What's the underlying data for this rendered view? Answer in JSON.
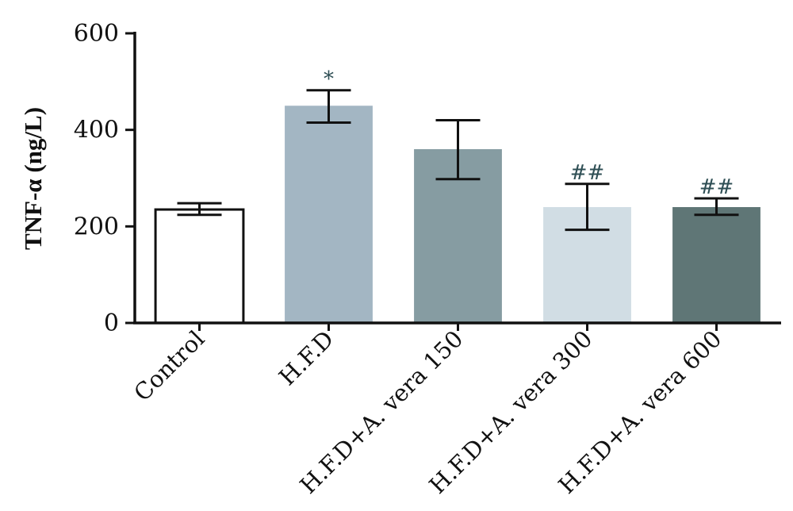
{
  "chart_data": {
    "type": "bar",
    "ylabel": "TNF-α (ng/L)",
    "xlabel": "",
    "ylim": [
      0,
      600
    ],
    "yticks": [
      "0",
      "200",
      "400",
      "600"
    ],
    "categories": [
      "Control",
      "H.F.D",
      "H.F.D+A. vera 150",
      "H.F.D+A. vera 300",
      "H.F.D+A. vera 600"
    ],
    "values": [
      235,
      450,
      360,
      240,
      240
    ],
    "error_low": [
      224,
      415,
      298,
      193,
      224
    ],
    "error_high": [
      248,
      482,
      420,
      288,
      258
    ],
    "annotations": [
      "",
      "*",
      "",
      "##",
      "##"
    ],
    "colors": [
      "#ffffff",
      "#a3b6c3",
      "#869ca2",
      "#d1dde4",
      "#5f7676"
    ],
    "grid": false,
    "legend": "none"
  }
}
